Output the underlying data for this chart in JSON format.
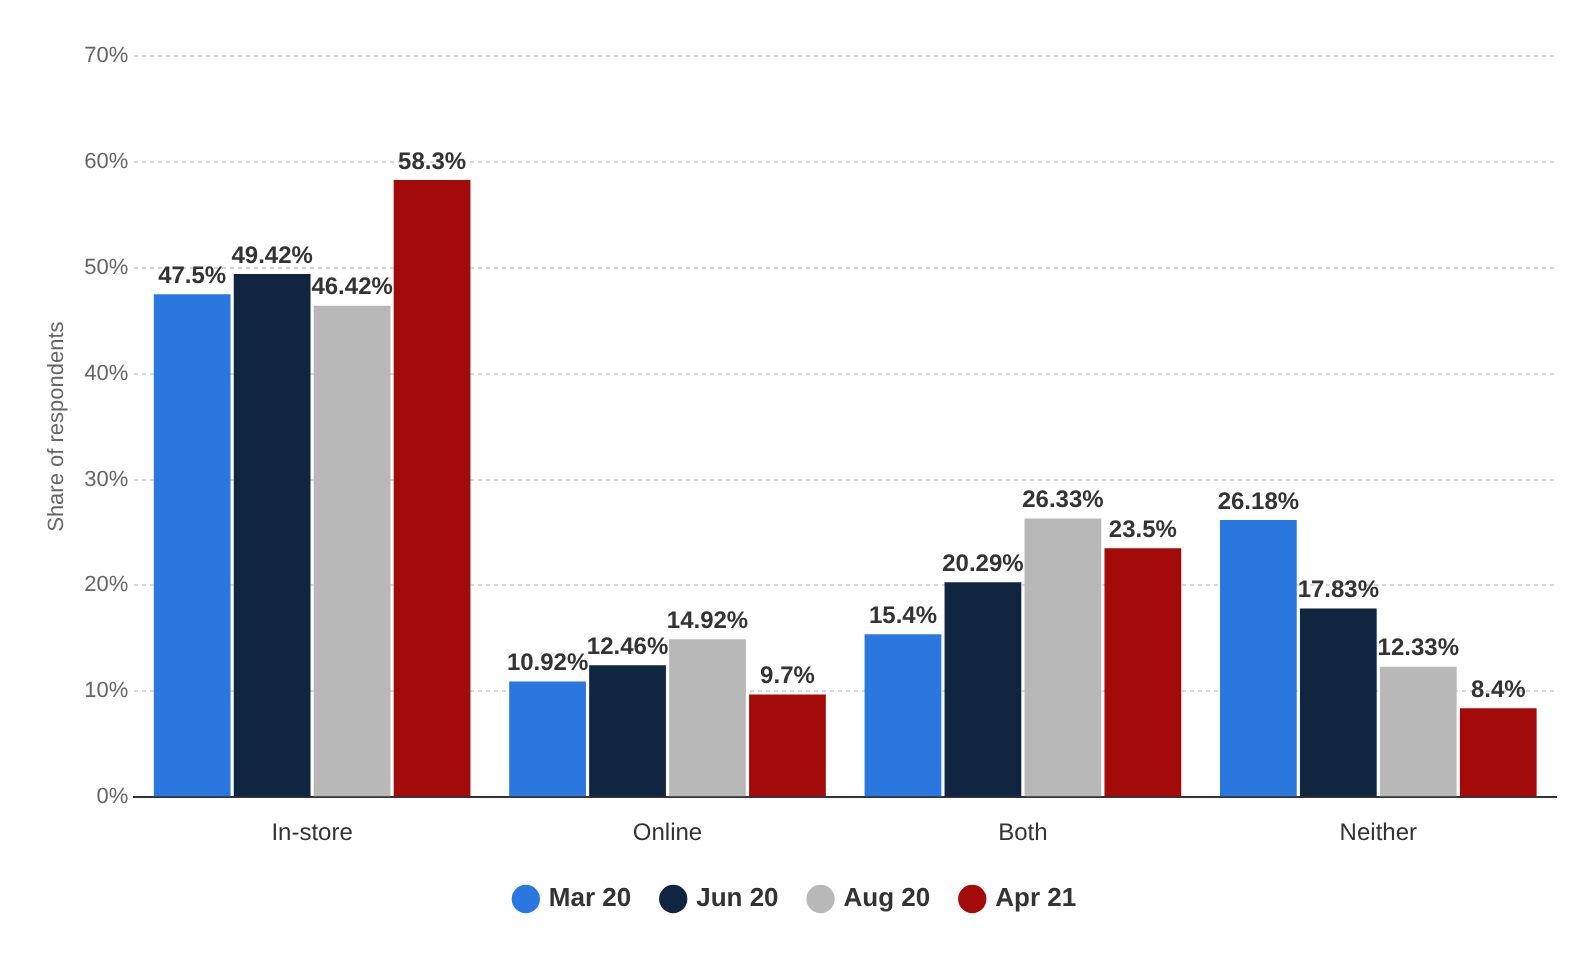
{
  "chart_data": {
    "type": "bar",
    "ylabel": "Share of respondents",
    "categories": [
      "In-store",
      "Online",
      "Both",
      "Neither"
    ],
    "series": [
      {
        "name": "Mar 20",
        "color": "#2a77e0",
        "values": [
          47.5,
          10.92,
          15.4,
          26.18
        ],
        "value_labels": [
          "47.5%",
          "10.92%",
          "15.4%",
          "26.18%"
        ]
      },
      {
        "name": "Jun 20",
        "color": "#10253f",
        "values": [
          49.42,
          12.46,
          20.29,
          17.83
        ],
        "value_labels": [
          "49.42%",
          "12.46%",
          "20.29%",
          "17.83%"
        ]
      },
      {
        "name": "Aug 20",
        "color": "#b8b8b8",
        "values": [
          46.42,
          14.92,
          26.33,
          12.33
        ],
        "value_labels": [
          "46.42%",
          "14.92%",
          "26.33%",
          "12.33%"
        ]
      },
      {
        "name": "Apr 21",
        "color": "#a30b0b",
        "values": [
          58.3,
          9.7,
          23.5,
          8.4
        ],
        "value_labels": [
          "58.3%",
          "9.7%",
          "23.5%",
          "8.4%"
        ]
      }
    ],
    "ylim": [
      0,
      70
    ],
    "yticks": [
      {
        "value": 0,
        "label": "0%"
      },
      {
        "value": 10,
        "label": "10%"
      },
      {
        "value": 20,
        "label": "20%"
      },
      {
        "value": 30,
        "label": "30%"
      },
      {
        "value": 40,
        "label": "40%"
      },
      {
        "value": 50,
        "label": "50%"
      },
      {
        "value": 60,
        "label": "60%"
      },
      {
        "value": 70,
        "label": "70%"
      }
    ],
    "grid": "y",
    "legend": "bottom"
  }
}
